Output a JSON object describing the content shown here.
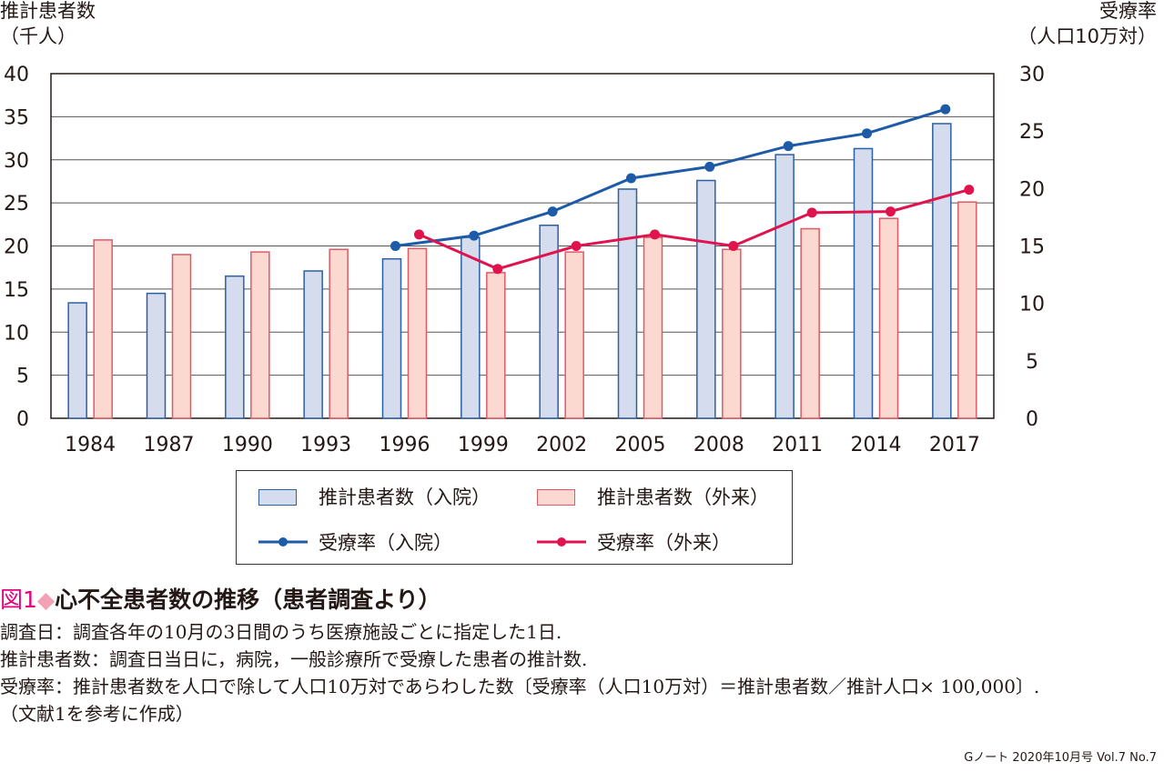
{
  "chart_data": {
    "type": "bar+line",
    "categories": [
      "1984",
      "1987",
      "1990",
      "1993",
      "1996",
      "1999",
      "2002",
      "2005",
      "2008",
      "2011",
      "2014",
      "2017"
    ],
    "left_axis": {
      "title_line1": "推計患者数",
      "title_line2": "（千人）",
      "ylim": [
        0,
        40
      ],
      "ticks": [
        0,
        5,
        10,
        15,
        20,
        25,
        30,
        35,
        40
      ]
    },
    "right_axis": {
      "title_line1": "受療率",
      "title_line2": "（人口10万対）",
      "ylim": [
        0,
        30
      ],
      "ticks": [
        0,
        5,
        10,
        15,
        20,
        25,
        30
      ]
    },
    "bar_series": [
      {
        "name": "推計患者数（入院）",
        "color": "#d4dcee",
        "border": "#2e5fa3",
        "values": [
          13.4,
          14.5,
          16.5,
          17.1,
          18.5,
          21.0,
          22.4,
          26.6,
          27.6,
          30.6,
          31.3,
          34.2
        ]
      },
      {
        "name": "推計患者数（外来）",
        "color": "#fbd9d0",
        "border": "#e05a66",
        "values": [
          20.7,
          19.0,
          19.3,
          19.6,
          19.7,
          16.9,
          19.3,
          21.0,
          19.6,
          22.0,
          23.2,
          25.1
        ]
      }
    ],
    "line_series": [
      {
        "name": "受療率（入院）",
        "color": "#1d5ba8",
        "start_index": 4,
        "values": [
          null,
          null,
          null,
          null,
          15.0,
          15.9,
          18.0,
          20.9,
          21.9,
          23.7,
          24.8,
          26.9
        ]
      },
      {
        "name": "受療率（外来）",
        "color": "#e0134f",
        "start_index": 4,
        "values": [
          null,
          null,
          null,
          null,
          16.0,
          13.0,
          15.0,
          16.0,
          15.0,
          17.9,
          18.0,
          19.9
        ]
      }
    ]
  },
  "legend": {
    "bar_inpatient": "推計患者数（入院）",
    "bar_outpatient": "推計患者数（外来）",
    "line_inpatient": "受療率（入院）",
    "line_outpatient": "受療率（外来）"
  },
  "caption": {
    "fig_label": "図1",
    "diamond": "◆",
    "title": "心不全患者数の推移（患者調査より）"
  },
  "notes": [
    "調査日：調査各年の10月の3日間のうち医療施設ごとに指定した1日.",
    "推計患者数：調査日当日に，病院，一般診療所で受療した患者の推計数.",
    "受療率：推計患者数を人口で除して人口10万対であらわした数〔受療率（人口10万対）＝推計患者数／推計人口× 100,000〕.",
    "（文献1を参考に作成）"
  ],
  "footer": "Gノート 2020年10月号 Vol.7 No.7",
  "colors": {
    "inpatient_line": "#1d5ba8",
    "outpatient_line": "#e0134f",
    "axis": "#231815"
  }
}
